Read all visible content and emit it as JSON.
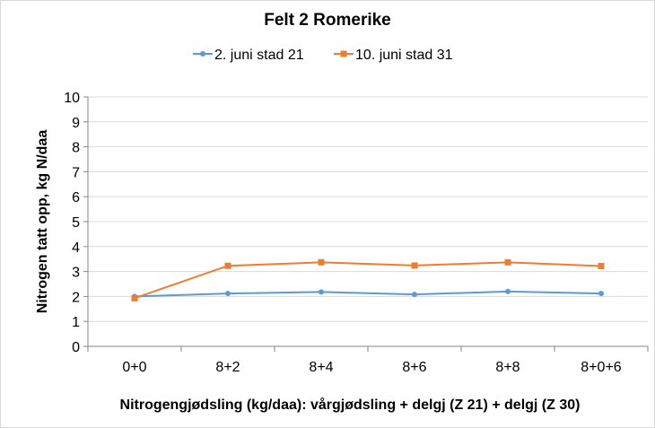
{
  "chart_data": {
    "type": "line",
    "title": "Felt 2 Romerike",
    "xlabel": "Nitrogengjødsling (kg/daa): vårgjødsling + delgj (Z 21) + delgj (Z 30)",
    "ylabel": "Nitrogen tatt opp, kg N/daa",
    "categories": [
      "0+0",
      "8+2",
      "8+4",
      "8+6",
      "8+8",
      "8+0+6"
    ],
    "ylim": [
      0,
      10
    ],
    "yticks": [
      "0",
      "1",
      "2",
      "3",
      "4",
      "5",
      "6",
      "7",
      "8",
      "9",
      "10"
    ],
    "grid": true,
    "legend": "top",
    "series": [
      {
        "name": "2. juni stad 21",
        "color": "#5b9bd5",
        "marker": "circle",
        "values": [
          2.0,
          2.12,
          2.18,
          2.08,
          2.2,
          2.12
        ]
      },
      {
        "name": "10. juni stad 31",
        "color": "#ed7d31",
        "marker": "square",
        "values": [
          1.93,
          3.23,
          3.37,
          3.24,
          3.37,
          3.22
        ]
      }
    ]
  }
}
